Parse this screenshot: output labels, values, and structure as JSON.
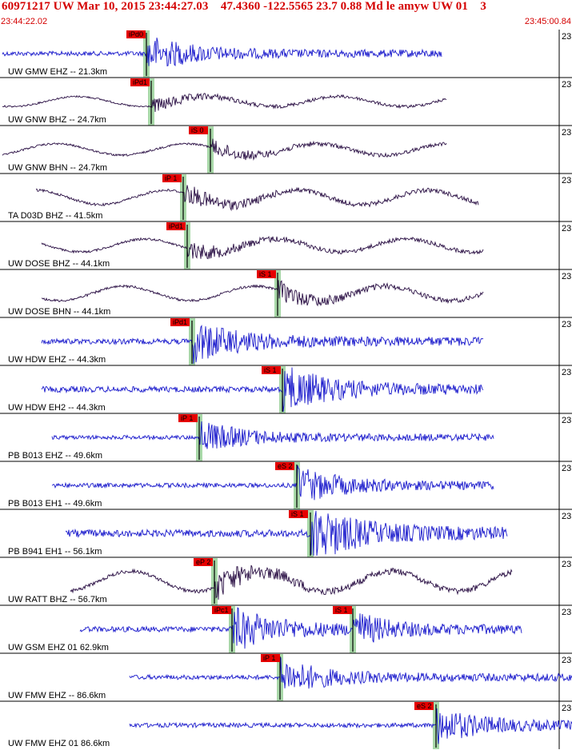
{
  "header": {
    "title": "60971217 UW Mar 10, 2015 23:44:27.03    47.4360 -122.5565 23.7 0.88 Md le amyw UW 01    3",
    "start_time": "23:44:22.02",
    "end_time": "23:45:00.84"
  },
  "colors": {
    "blue_trace": "#1a1acc",
    "purple_trace": "#2a0f44",
    "pick_box": "#e60000",
    "pick_band": "#a8d8a8",
    "header_text": "#d40000"
  },
  "traces": [
    {
      "label": "UW GMW EHZ -- 21.3km",
      "right_num": "23",
      "color": "blue",
      "picks": [
        {
          "text": "iPd0",
          "phase": "P"
        }
      ]
    },
    {
      "label": "UW GNW BHZ -- 24.7km",
      "right_num": "23",
      "color": "purple",
      "picks": [
        {
          "text": "iPd1",
          "phase": "P"
        }
      ]
    },
    {
      "label": "UW GNW BHN -- 24.7km",
      "right_num": "23",
      "color": "purple",
      "picks": [
        {
          "text": "iS 0",
          "phase": "S"
        }
      ]
    },
    {
      "label": "TA D03D BHZ -- 41.5km",
      "right_num": "23",
      "color": "purple",
      "picks": [
        {
          "text": "iP 1",
          "phase": "P"
        }
      ]
    },
    {
      "label": "UW DOSE BHZ -- 44.1km",
      "right_num": "23",
      "color": "purple",
      "picks": [
        {
          "text": "iPd1",
          "phase": "P"
        }
      ]
    },
    {
      "label": "UW DOSE BHN -- 44.1km",
      "right_num": "23",
      "color": "purple",
      "picks": [
        {
          "text": "iS 1",
          "phase": "S"
        }
      ]
    },
    {
      "label": "UW HDW EHZ -- 44.3km",
      "right_num": "23",
      "color": "blue",
      "picks": [
        {
          "text": "iPd1",
          "phase": "P"
        }
      ]
    },
    {
      "label": "UW HDW EH2 -- 44.3km",
      "right_num": "23",
      "color": "blue",
      "picks": [
        {
          "text": "iS 1",
          "phase": "S"
        }
      ]
    },
    {
      "label": "PB B013 EHZ -- 49.6km",
      "right_num": "23",
      "color": "blue",
      "picks": [
        {
          "text": "iP 1",
          "phase": "P"
        }
      ]
    },
    {
      "label": "PB B013 EH1 -- 49.6km",
      "right_num": "23",
      "color": "blue",
      "picks": [
        {
          "text": "eS 2",
          "phase": "S"
        }
      ]
    },
    {
      "label": "PB B941 EH1 -- 56.1km",
      "right_num": "23",
      "color": "blue",
      "picks": [
        {
          "text": "iS 1",
          "phase": "S"
        }
      ]
    },
    {
      "label": "UW RATT BHZ -- 56.7km",
      "right_num": "23",
      "color": "purple",
      "picks": [
        {
          "text": "eP 2",
          "phase": "P"
        }
      ]
    },
    {
      "label": "UW GSM EHZ 01 62.9km",
      "right_num": "23",
      "color": "blue",
      "picks": [
        {
          "text": "iPc1",
          "phase": "P"
        },
        {
          "text": "iS 1",
          "phase": "S"
        }
      ]
    },
    {
      "label": "UW FMW EHZ -- 86.6km",
      "right_num": "23",
      "color": "blue",
      "picks": [
        {
          "text": "iP 1",
          "phase": "P"
        }
      ]
    },
    {
      "label": "UW FMW EHZ 01 86.6km",
      "right_num": "23",
      "color": "blue",
      "picks": [
        {
          "text": "eS 2",
          "phase": "S"
        }
      ]
    }
  ]
}
